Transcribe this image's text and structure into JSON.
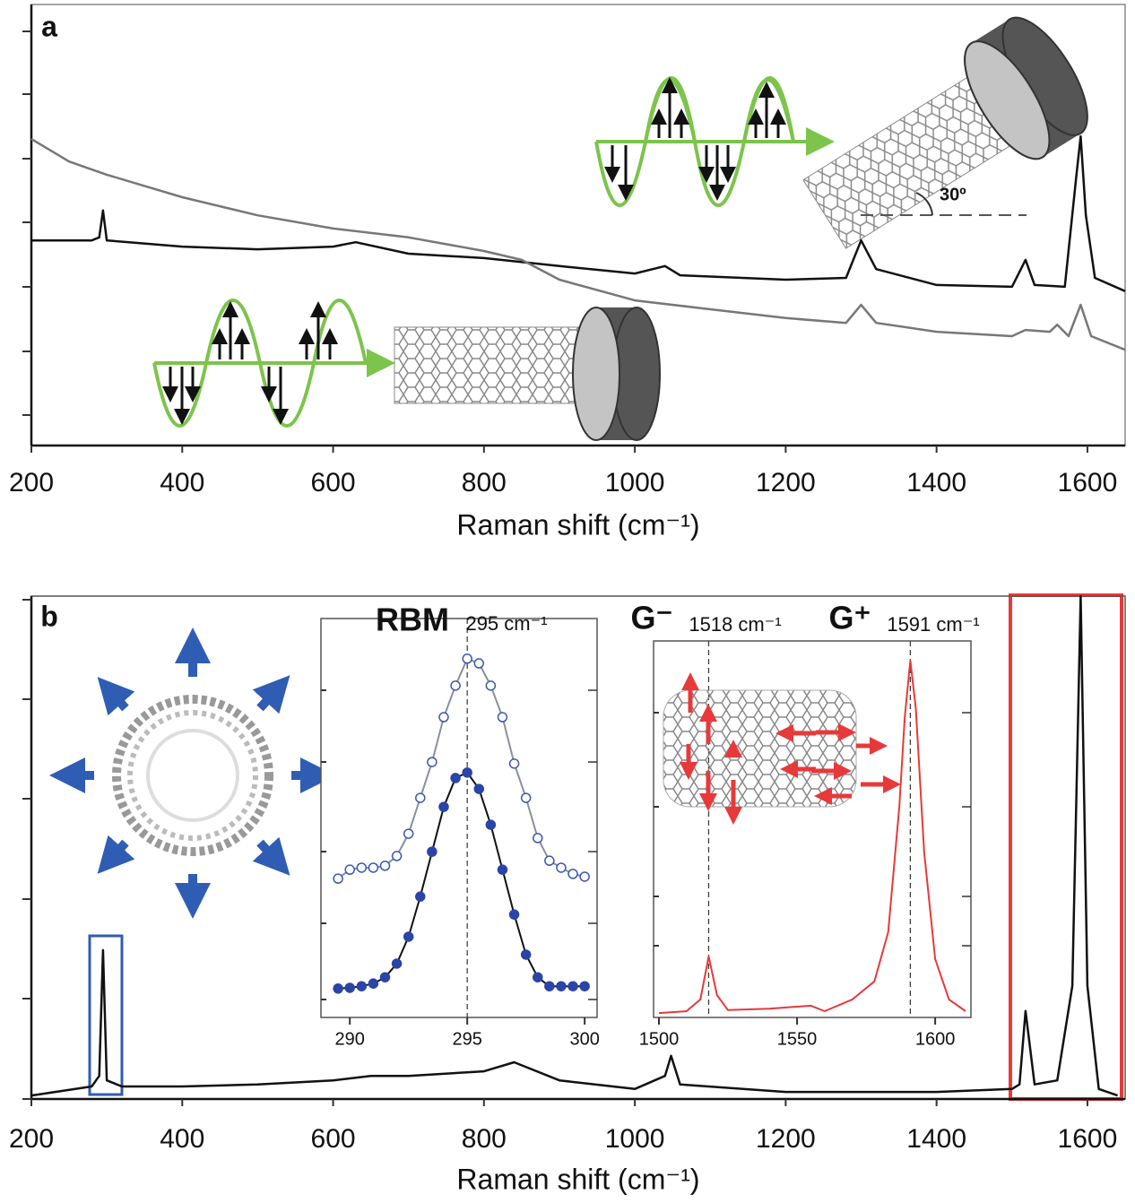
{
  "chart_data": [
    {
      "type": "line",
      "label": "a",
      "x_label": "Raman shift (cm⁻¹)",
      "annotation": "30º",
      "xlim": [
        200,
        1650
      ],
      "xticks": [
        200,
        400,
        600,
        800,
        1000,
        1200,
        1400,
        1600
      ],
      "ylim": [
        0,
        100
      ],
      "series": [
        {
          "color": "#111111",
          "x": [
            200,
            280,
            290,
            295,
            300,
            400,
            500,
            600,
            630,
            700,
            800,
            900,
            1000,
            1040,
            1060,
            1200,
            1280,
            1300,
            1320,
            1400,
            1500,
            1518,
            1530,
            1570,
            1585,
            1591,
            1598,
            1610,
            1650
          ],
          "values": [
            46.5,
            46.5,
            47.2,
            53.3,
            46.5,
            45.1,
            44.5,
            45.1,
            46.1,
            43.5,
            42.5,
            40.7,
            39,
            40.7,
            38.6,
            37.6,
            38,
            46.5,
            40,
            36.4,
            36,
            42.1,
            36.4,
            36,
            60.6,
            70.1,
            52.2,
            38,
            35
          ]
        },
        {
          "color": "#777777",
          "x": [
            200,
            250,
            300,
            400,
            500,
            600,
            700,
            800,
            850,
            900,
            1000,
            1100,
            1200,
            1280,
            1300,
            1320,
            1400,
            1500,
            1518,
            1550,
            1560,
            1575,
            1591,
            1605,
            1650
          ],
          "values": [
            69.5,
            64.4,
            61.4,
            56.3,
            52.2,
            49.2,
            47.2,
            44.1,
            42.1,
            37.6,
            32.9,
            30.9,
            28.9,
            27.8,
            31.9,
            27.8,
            25.8,
            24.8,
            26.2,
            25.8,
            27.4,
            24.8,
            31.9,
            24.8,
            21.7
          ]
        }
      ]
    },
    {
      "type": "line",
      "label": "b",
      "x_label": "Raman shift (cm⁻¹)",
      "xlim": [
        200,
        1650
      ],
      "xticks": [
        200,
        400,
        600,
        800,
        1000,
        1200,
        1400,
        1600
      ],
      "ylim": [
        0,
        100
      ],
      "series": [
        {
          "color": "#111111",
          "x": [
            200,
            280,
            290,
            295,
            300,
            320,
            400,
            500,
            600,
            650,
            700,
            800,
            840,
            900,
            1000,
            1040,
            1048,
            1060,
            1200,
            1400,
            1500,
            1510,
            1518,
            1530,
            1560,
            1580,
            1591,
            1600,
            1615,
            1640
          ],
          "values": [
            0.7,
            2.5,
            4.6,
            29.6,
            3.7,
            2.5,
            2.5,
            2.9,
            3.7,
            4.6,
            4.6,
            5.5,
            7.3,
            3.7,
            2,
            4.6,
            8.6,
            2.9,
            1.4,
            1.4,
            2,
            2.9,
            17.5,
            2.9,
            3.7,
            22.5,
            100,
            22.5,
            2,
            0.7
          ]
        }
      ]
    },
    {
      "type": "scatter",
      "title": "RBM",
      "subtitle": "295 cm⁻¹",
      "vlines": [
        295
      ],
      "xlim": [
        289,
        300.3
      ],
      "xticks": [
        290,
        295,
        300
      ],
      "ylim": [
        0,
        100
      ],
      "x": [
        289.5,
        290,
        290.5,
        291,
        291.5,
        292,
        292.5,
        293,
        293.5,
        294,
        294.5,
        295,
        295.5,
        296,
        296.5,
        297,
        297.5,
        298,
        298.5,
        299,
        299.5,
        300
      ],
      "series": [
        {
          "color": "#3a58b0",
          "line_color": "#8a8f9a",
          "marker": "open",
          "values": [
            35.6,
            37.9,
            38.4,
            38.4,
            38.9,
            41.4,
            47.1,
            56.3,
            65.5,
            77,
            85.1,
            92,
            90.8,
            85.1,
            77,
            65.1,
            56.3,
            46,
            40.2,
            38.4,
            36.8,
            36.1
          ]
        },
        {
          "color": "#2a44a8",
          "line_color": "#111111",
          "marker": "filled",
          "values": [
            7.4,
            7.6,
            8,
            8.7,
            10.3,
            13.8,
            20.7,
            31,
            42.5,
            54,
            61.4,
            62.8,
            58.6,
            49.4,
            37.9,
            26.4,
            16.1,
            10.3,
            8,
            8,
            8,
            8
          ]
        }
      ]
    },
    {
      "type": "line",
      "peaks": [
        {
          "name": "G⁻",
          "text": "1518 cm⁻¹"
        },
        {
          "name": "G⁺",
          "text": "1591 cm⁻¹"
        }
      ],
      "vlines": [
        1518,
        1591
      ],
      "xlim": [
        1500,
        1611
      ],
      "xticks": [
        1500,
        1550,
        1600
      ],
      "ylim": [
        0,
        100
      ],
      "series": [
        {
          "color": "#e8393a",
          "x": [
            1500,
            1510,
            1515,
            1518,
            1521,
            1525,
            1540,
            1555,
            1560,
            1570,
            1578,
            1583,
            1587,
            1589,
            1591,
            1593,
            1596,
            1600,
            1605,
            1611
          ],
          "values": [
            1.2,
            1.7,
            4.9,
            16.6,
            6.1,
            2,
            2.4,
            3.2,
            1.7,
            4.9,
            9.8,
            23.2,
            57.3,
            81.7,
            97.1,
            84.1,
            45.1,
            15.9,
            4.9,
            1.7
          ]
        }
      ]
    }
  ]
}
